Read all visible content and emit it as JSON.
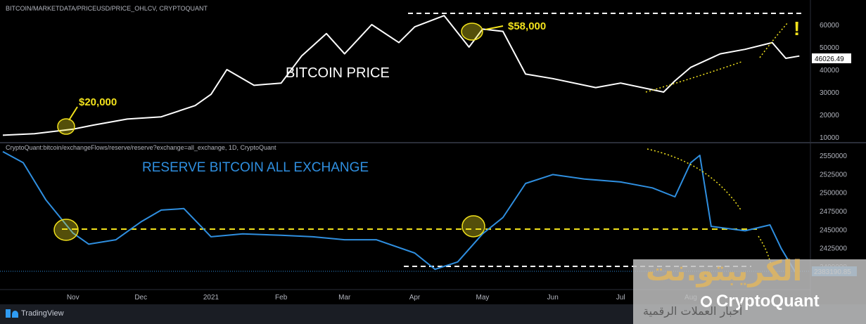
{
  "top_panel": {
    "legend": "BITCOIN/MARKETDATA/PRICEUSD/PRICE_OHLCV, CRYPTOQUANT",
    "title": "BITCOIN PRICE",
    "annotation_low": "$20,000",
    "annotation_high": "$58,000",
    "exclamation": "!",
    "last_value_label": "46026.49"
  },
  "bottom_panel": {
    "legend": "CryptoQuant:bitcoin/exchangeFlows/reserve/reserve?exchange=all_exchange, 1D, CryptoQuant",
    "title": "RESERVE BITCOIN ALL EXCHANGE",
    "last_value_label": "2383190.85"
  },
  "footer": {
    "tradingview": "TradingView"
  },
  "watermark": {
    "arabic_brand": "الكريبتو.نت",
    "arabic_subtitle": "أخبار العملات الرقمية",
    "cryptoquant": "CryptoQuant"
  },
  "colors": {
    "price": "#ffffff",
    "reserve": "#2f8fe0",
    "highlight": "#f2e21c",
    "background": "#000000"
  },
  "chart_data": [
    {
      "type": "line",
      "series": [
        {
          "name": "BITCOIN/MARKETDATA/PRICEUSD/PRICE_OHLCV",
          "x": [
            "2020-10-01",
            "2020-10-15",
            "2020-11-01",
            "2020-11-10",
            "2020-11-25",
            "2020-12-10",
            "2020-12-25",
            "2021-01-01",
            "2021-01-08",
            "2021-01-20",
            "2021-02-01",
            "2021-02-10",
            "2021-02-21",
            "2021-03-01",
            "2021-03-13",
            "2021-03-25",
            "2021-04-01",
            "2021-04-14",
            "2021-04-25",
            "2021-05-01",
            "2021-05-10",
            "2021-05-20",
            "2021-06-01",
            "2021-06-20",
            "2021-07-01",
            "2021-07-20",
            "2021-07-25",
            "2021-08-01",
            "2021-08-14",
            "2021-08-25",
            "2021-09-06",
            "2021-09-12",
            "2021-09-18"
          ],
          "y": [
            10800,
            11500,
            13500,
            15300,
            18000,
            19000,
            24000,
            29000,
            40000,
            33000,
            34000,
            46000,
            56000,
            47000,
            60000,
            52000,
            59000,
            64000,
            50000,
            58000,
            57000,
            38000,
            36000,
            32000,
            34000,
            30000,
            35000,
            41000,
            47000,
            49000,
            52000,
            45000,
            46026.49
          ]
        }
      ],
      "yticks": [
        10000,
        20000,
        30000,
        40000,
        50000,
        60000
      ],
      "ylim": [
        8000,
        68000
      ]
    },
    {
      "type": "line",
      "series": [
        {
          "name": "CryptoQuant:bitcoin/exchangeFlows/reserve/reserve?exchange=all_exchange, 1D",
          "x": [
            "2020-10-01",
            "2020-10-10",
            "2020-10-20",
            "2020-11-01",
            "2020-11-08",
            "2020-11-20",
            "2020-12-01",
            "2020-12-10",
            "2020-12-20",
            "2021-01-01",
            "2021-01-15",
            "2021-02-01",
            "2021-02-15",
            "2021-03-01",
            "2021-03-15",
            "2021-04-01",
            "2021-04-10",
            "2021-04-20",
            "2021-05-01",
            "2021-05-10",
            "2021-05-20",
            "2021-06-01",
            "2021-06-15",
            "2021-07-01",
            "2021-07-15",
            "2021-07-25",
            "2021-08-01",
            "2021-08-05",
            "2021-08-10",
            "2021-08-25",
            "2021-09-05",
            "2021-09-10",
            "2021-09-18"
          ],
          "y": [
            2555000,
            2540000,
            2490000,
            2445000,
            2430000,
            2436000,
            2460000,
            2476000,
            2478000,
            2440000,
            2444000,
            2442000,
            2440000,
            2436000,
            2436000,
            2418000,
            2396000,
            2406000,
            2444000,
            2466000,
            2512000,
            2524000,
            2518000,
            2514000,
            2506000,
            2494000,
            2540000,
            2550000,
            2454000,
            2448000,
            2456000,
            2424000,
            2383190.85
          ]
        }
      ],
      "yticks": [
        2400000,
        2425000,
        2450000,
        2475000,
        2500000,
        2525000,
        2550000
      ],
      "ylim": [
        2362000,
        2562000
      ]
    }
  ],
  "x_axis_labels": [
    "Nov",
    "Dec",
    "2021",
    "Feb",
    "Mar",
    "Apr",
    "May",
    "Jun",
    "Jul",
    "Aug"
  ]
}
